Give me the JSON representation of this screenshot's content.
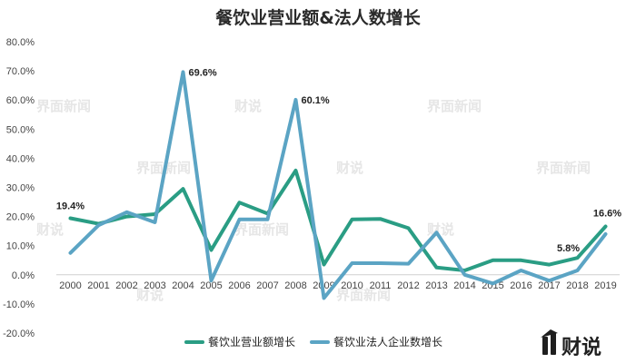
{
  "chart_data": {
    "type": "line",
    "title": "餐饮业营业额&法人数增长",
    "xlabel": "",
    "ylabel": "",
    "categories": [
      "2000",
      "2001",
      "2002",
      "2003",
      "2004",
      "2005",
      "2006",
      "2007",
      "2008",
      "2009",
      "2010",
      "2011",
      "2012",
      "2013",
      "2014",
      "2015",
      "2016",
      "2017",
      "2018",
      "2019"
    ],
    "y_ticks": [
      "80.0%",
      "70.0%",
      "60.0%",
      "50.0%",
      "40.0%",
      "30.0%",
      "20.0%",
      "10.0%",
      "0.0%",
      "-10.0%",
      "-20.0%"
    ],
    "ylim": [
      -20,
      80
    ],
    "grid": false,
    "legend_position": "bottom",
    "series": [
      {
        "name": "餐饮业营业额增长",
        "color": "#2a9d84",
        "values": [
          19.4,
          17.5,
          20.0,
          20.8,
          29.5,
          8.5,
          24.8,
          21.0,
          35.8,
          3.5,
          19.0,
          19.2,
          16.0,
          2.5,
          1.5,
          5.0,
          5.0,
          3.5,
          5.8,
          16.6
        ]
      },
      {
        "name": "餐饮业法人企业数增长",
        "color": "#5ba4c4",
        "values": [
          7.5,
          17.0,
          21.5,
          18.0,
          69.6,
          -2.0,
          19.0,
          19.0,
          60.1,
          -8.0,
          4.0,
          4.0,
          3.8,
          14.5,
          0.0,
          -3.0,
          1.5,
          -2.0,
          1.5,
          14.0
        ]
      }
    ],
    "data_labels": [
      {
        "series": 0,
        "index": 0,
        "text": "19.4%"
      },
      {
        "series": 1,
        "index": 4,
        "text": "69.6%"
      },
      {
        "series": 1,
        "index": 8,
        "text": "60.1%"
      },
      {
        "series": 0,
        "index": 18,
        "text": "5.8%"
      },
      {
        "series": 0,
        "index": 19,
        "text": "16.6%"
      }
    ]
  },
  "watermarks": {
    "small": "界面新闻",
    "large": "财说"
  },
  "logo": {
    "text": "财说"
  }
}
